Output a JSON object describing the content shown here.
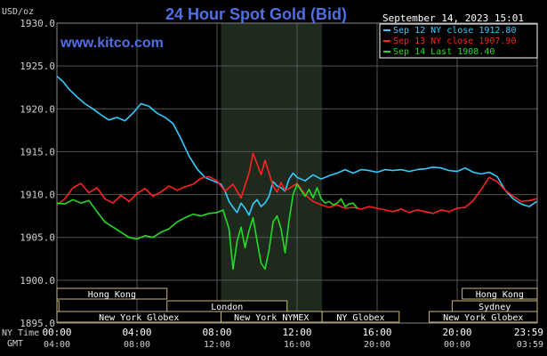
{
  "chart_data": {
    "type": "line",
    "title": "24 Hour Spot Gold (Bid)",
    "watermark": "www.kitco.com",
    "timestamp": "September 14, 2023 15:01",
    "ylabel": "USD/oz",
    "ylim": [
      1895,
      1930
    ],
    "yticks": [
      "1930.0",
      "1925.0",
      "1920.0",
      "1915.0",
      "1910.0",
      "1905.0",
      "1900.0",
      "1895.0"
    ],
    "grid": true,
    "legend_position": "top-right",
    "x_range_hours": [
      0,
      24
    ],
    "time_row_labels": [
      "NY Time",
      "GMT"
    ],
    "ny_time_ticks": [
      {
        "h": 0,
        "label": "00:00"
      },
      {
        "h": 4,
        "label": "04:00"
      },
      {
        "h": 8,
        "label": "08:00"
      },
      {
        "h": 12,
        "label": "12:00"
      },
      {
        "h": 16,
        "label": "16:00"
      },
      {
        "h": 20,
        "label": "20:00"
      },
      {
        "h": 23.983,
        "label": "23:59"
      }
    ],
    "gmt_ticks": [
      {
        "h": 0,
        "label": "04:00"
      },
      {
        "h": 4,
        "label": "08:00"
      },
      {
        "h": 8,
        "label": "12:00"
      },
      {
        "h": 12,
        "label": "16:00"
      },
      {
        "h": 16,
        "label": "20:00"
      },
      {
        "h": 20,
        "label": "00:00"
      },
      {
        "h": 23.983,
        "label": "03:59"
      }
    ],
    "highlight_hours": [
      8.2,
      13.25
    ],
    "markets": [
      {
        "label": "Hong Kong",
        "row": 0,
        "start": 0,
        "end": 5.5
      },
      {
        "label": "Hong Kong",
        "row": 0,
        "start": 20.25,
        "end": 24
      },
      {
        "label": "London",
        "row": 1,
        "start": 0,
        "end": 0.1
      },
      {
        "label": "London",
        "row": 1,
        "start": 5.5,
        "end": 11.5
      },
      {
        "label": "Sydney",
        "row": 1,
        "start": 19.75,
        "end": 24
      },
      {
        "label": "New York Globex",
        "row": 2,
        "start": 0,
        "end": 8.2
      },
      {
        "label": "New York NYMEX",
        "row": 2,
        "start": 8.2,
        "end": 13.25
      },
      {
        "label": "NY Globex",
        "row": 2,
        "start": 13.25,
        "end": 17.1
      },
      {
        "label": "New York Globex",
        "row": 2,
        "start": 18.6,
        "end": 24
      }
    ],
    "series": [
      {
        "name": "Sep 12 NY close 1912.80",
        "color": "#33ccff",
        "x": [
          0,
          0.3,
          0.6,
          1.0,
          1.4,
          1.8,
          2.2,
          2.6,
          3.0,
          3.4,
          3.8,
          4.2,
          4.6,
          5.0,
          5.4,
          5.8,
          6.2,
          6.6,
          7.0,
          7.4,
          7.8,
          8.2,
          8.4,
          8.6,
          8.8,
          9.0,
          9.2,
          9.4,
          9.6,
          9.8,
          10.0,
          10.2,
          10.4,
          10.6,
          10.8,
          11.0,
          11.2,
          11.4,
          11.6,
          11.8,
          12.0,
          12.4,
          12.8,
          13.2,
          13.6,
          14.0,
          14.4,
          14.8,
          15.2,
          15.6,
          16.0,
          16.4,
          16.8,
          17.2,
          17.6,
          18.0,
          18.4,
          18.8,
          19.2,
          19.6,
          20.0,
          20.4,
          20.8,
          21.2,
          21.6,
          22.0,
          22.4,
          22.8,
          23.2,
          23.6,
          23.983
        ],
        "y": [
          1923.8,
          1923.2,
          1922.3,
          1921.4,
          1920.6,
          1920.0,
          1919.3,
          1918.7,
          1919.0,
          1918.6,
          1919.5,
          1920.6,
          1920.3,
          1919.5,
          1919.0,
          1918.3,
          1916.5,
          1914.5,
          1913.0,
          1912.0,
          1911.6,
          1911.2,
          1910.4,
          1909.2,
          1908.5,
          1907.9,
          1909.0,
          1908.4,
          1907.6,
          1908.9,
          1909.4,
          1908.6,
          1909.0,
          1909.8,
          1911.5,
          1911.0,
          1910.8,
          1910.4,
          1911.8,
          1912.5,
          1912.0,
          1911.6,
          1912.3,
          1911.8,
          1912.2,
          1912.5,
          1912.9,
          1912.5,
          1912.9,
          1912.8,
          1912.6,
          1912.9,
          1912.8,
          1912.9,
          1912.7,
          1912.9,
          1913.0,
          1913.2,
          1913.1,
          1912.8,
          1912.7,
          1913.1,
          1912.6,
          1912.4,
          1912.6,
          1912.1,
          1910.5,
          1909.5,
          1908.9,
          1908.6,
          1909.2
        ]
      },
      {
        "name": "Sep 13 NY close 1907.90",
        "color": "#ff2222",
        "x": [
          0,
          0.4,
          0.8,
          1.2,
          1.6,
          2.0,
          2.4,
          2.8,
          3.2,
          3.6,
          4.0,
          4.4,
          4.8,
          5.2,
          5.6,
          6.0,
          6.4,
          6.8,
          7.2,
          7.6,
          8.0,
          8.4,
          8.8,
          9.2,
          9.6,
          9.8,
          10.0,
          10.2,
          10.4,
          10.6,
          10.8,
          11.0,
          11.2,
          11.4,
          11.6,
          11.8,
          12.0,
          12.4,
          12.8,
          13.2,
          13.6,
          14.0,
          14.4,
          14.8,
          15.2,
          15.6,
          16.0,
          16.4,
          16.8,
          17.2,
          17.6,
          18.0,
          18.4,
          18.8,
          19.2,
          19.6,
          20.0,
          20.4,
          20.8,
          21.2,
          21.6,
          22.0,
          22.4,
          22.8,
          23.2,
          23.6,
          23.983
        ],
        "y": [
          1908.8,
          1909.5,
          1910.8,
          1911.3,
          1910.2,
          1910.8,
          1909.5,
          1909.0,
          1909.9,
          1909.2,
          1910.1,
          1910.7,
          1909.8,
          1910.3,
          1911.0,
          1910.5,
          1910.9,
          1911.2,
          1911.9,
          1912.1,
          1911.6,
          1910.4,
          1911.2,
          1909.6,
          1912.5,
          1914.8,
          1913.6,
          1912.3,
          1914.0,
          1912.5,
          1911.0,
          1910.3,
          1911.4,
          1910.5,
          1910.7,
          1911.0,
          1911.3,
          1910.0,
          1909.2,
          1908.8,
          1908.5,
          1908.8,
          1908.4,
          1908.5,
          1908.3,
          1908.6,
          1908.4,
          1908.2,
          1908.0,
          1908.3,
          1907.9,
          1908.2,
          1908.0,
          1907.8,
          1908.2,
          1908.0,
          1908.4,
          1908.5,
          1909.3,
          1910.6,
          1912.0,
          1911.5,
          1910.5,
          1909.8,
          1909.2,
          1909.3,
          1909.5
        ]
      },
      {
        "name": "Sep 14 Last 1908.40",
        "color": "#22dd22",
        "x": [
          0,
          0.4,
          0.8,
          1.2,
          1.6,
          2.0,
          2.4,
          2.8,
          3.2,
          3.6,
          4.0,
          4.4,
          4.8,
          5.2,
          5.6,
          6.0,
          6.4,
          6.8,
          7.2,
          7.6,
          8.0,
          8.3,
          8.6,
          8.8,
          9.0,
          9.2,
          9.4,
          9.6,
          9.8,
          10.0,
          10.2,
          10.4,
          10.6,
          10.8,
          11.0,
          11.2,
          11.4,
          11.6,
          11.8,
          12.0,
          12.2,
          12.4,
          12.6,
          12.8,
          13.0,
          13.2,
          13.4,
          13.6,
          13.8,
          14.0,
          14.2,
          14.4,
          14.6,
          14.8,
          15.01
        ],
        "y": [
          1909.0,
          1908.9,
          1909.4,
          1909.0,
          1909.3,
          1908.0,
          1906.8,
          1906.2,
          1905.6,
          1905.0,
          1904.8,
          1905.2,
          1905.0,
          1905.6,
          1906.0,
          1906.8,
          1907.3,
          1907.7,
          1907.5,
          1907.8,
          1907.9,
          1908.2,
          1906.0,
          1901.3,
          1904.5,
          1906.2,
          1903.8,
          1905.8,
          1907.3,
          1904.6,
          1902.0,
          1901.3,
          1903.5,
          1906.8,
          1907.5,
          1906.0,
          1903.2,
          1907.0,
          1910.0,
          1911.2,
          1910.5,
          1909.8,
          1910.6,
          1909.6,
          1910.8,
          1909.5,
          1909.0,
          1909.2,
          1908.8,
          1909.0,
          1909.5,
          1908.6,
          1908.9,
          1909.0,
          1908.4
        ]
      }
    ]
  }
}
